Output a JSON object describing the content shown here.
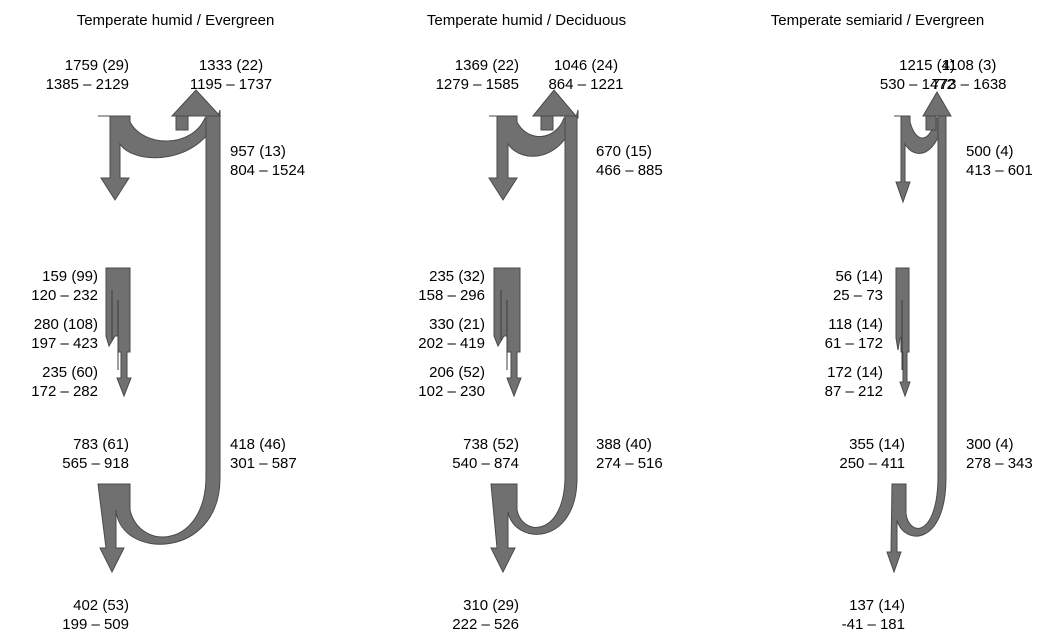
{
  "colors": {
    "flow": "#707070",
    "flow_edge": "#4a4a4a",
    "text": "#000000"
  },
  "panels": [
    {
      "title": "Temperate humid / Evergreen",
      "gpp": {
        "value": "1759 (29)",
        "range": "1385 – 2129"
      },
      "ra_canopy": {
        "value": "1333 (22)",
        "range": "1195 – 1737"
      },
      "npp": {
        "value": "957 (13)",
        "range": "804 – 1524"
      },
      "alloc_1": {
        "value": "159 (99)",
        "range": "120 – 232"
      },
      "alloc_2": {
        "value": "280 (108)",
        "range": "197 – 423"
      },
      "alloc_3": {
        "value": "235 (60)",
        "range": "172 – 282"
      },
      "ra_below": {
        "value": "783 (61)",
        "range": "565 – 918"
      },
      "to_below": {
        "value": "418 (46)",
        "range": "301 – 587"
      },
      "residual": {
        "value": "402 (53)",
        "range": "199 – 509"
      }
    },
    {
      "title": "Temperate humid / Deciduous",
      "gpp": {
        "value": "1369 (22)",
        "range": "1279 – 1585"
      },
      "ra_canopy": {
        "value": "1046 (24)",
        "range": "864 – 1221"
      },
      "npp": {
        "value": "670 (15)",
        "range": "466 – 885"
      },
      "alloc_1": {
        "value": "235 (32)",
        "range": "158 – 296"
      },
      "alloc_2": {
        "value": "330 (21)",
        "range": "202 – 419"
      },
      "alloc_3": {
        "value": "206 (52)",
        "range": "102 – 230"
      },
      "ra_below": {
        "value": "738 (52)",
        "range": "540 – 874"
      },
      "to_below": {
        "value": "388 (40)",
        "range": "274 – 516"
      },
      "residual": {
        "value": "310 (29)",
        "range": "222 – 526"
      }
    },
    {
      "title": "Temperate semiarid / Evergreen",
      "gpp": {
        "value": "1215 (4)",
        "range": "530 – 1472"
      },
      "ra_canopy": {
        "value": "1108 (3)",
        "range": "773 – 1638"
      },
      "npp": {
        "value": "500 (4)",
        "range": "413 – 601"
      },
      "alloc_1": {
        "value": "56 (14)",
        "range": "25 – 73"
      },
      "alloc_2": {
        "value": "118 (14)",
        "range": "61 – 172"
      },
      "alloc_3": {
        "value": "172 (14)",
        "range": "87 – 212"
      },
      "ra_below": {
        "value": "355 (14)",
        "range": "250 – 411"
      },
      "to_below": {
        "value": "300 (4)",
        "range": "278 – 343"
      },
      "residual": {
        "value": "137 (14)",
        "range": "-41 – 181"
      }
    }
  ]
}
